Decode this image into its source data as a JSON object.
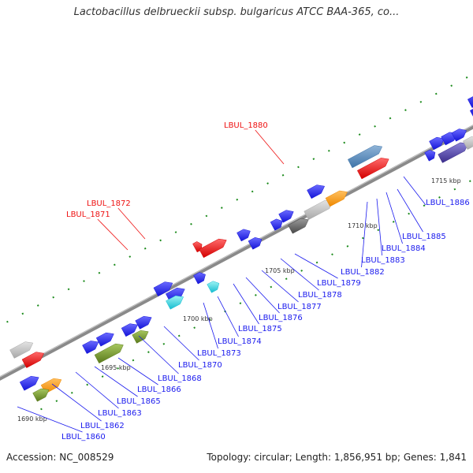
{
  "title": "Lactobacillus delbrueckii subsp. bulgaricus ATCC BAA-365, co...",
  "footer": {
    "accession": "Accession: NC_008529",
    "summary": "Topology: circular; Length: 1,856,951 bp; Genes: 1,841"
  },
  "colors": {
    "label_default": "#1a1aee",
    "label_highlight": "#ee1111",
    "backbone": "#8a8a8a",
    "tick": "#1a8a1a"
  },
  "scale_labels": [
    "1690 kbp",
    "1695 kbp",
    "1700 kbp",
    "1705 kbp",
    "1710 kbp",
    "1715 kbp"
  ],
  "gene_labels": [
    {
      "text": "LBUL_1860",
      "highlight": false
    },
    {
      "text": "LBUL_1862",
      "highlight": false
    },
    {
      "text": "LBUL_1863",
      "highlight": false
    },
    {
      "text": "LBUL_1865",
      "highlight": false
    },
    {
      "text": "LBUL_1866",
      "highlight": false
    },
    {
      "text": "LBUL_1868",
      "highlight": false
    },
    {
      "text": "LBUL_1870",
      "highlight": false
    },
    {
      "text": "LBUL_1871",
      "highlight": true
    },
    {
      "text": "LBUL_1872",
      "highlight": true
    },
    {
      "text": "LBUL_1873",
      "highlight": false
    },
    {
      "text": "LBUL_1874",
      "highlight": false
    },
    {
      "text": "LBUL_1875",
      "highlight": false
    },
    {
      "text": "LBUL_1876",
      "highlight": false
    },
    {
      "text": "LBUL_1877",
      "highlight": false
    },
    {
      "text": "LBUL_1878",
      "highlight": false
    },
    {
      "text": "LBUL_1879",
      "highlight": false
    },
    {
      "text": "LBUL_1880",
      "highlight": true
    },
    {
      "text": "LBUL_1882",
      "highlight": false
    },
    {
      "text": "LBUL_1883",
      "highlight": false
    },
    {
      "text": "LBUL_1884",
      "highlight": false
    },
    {
      "text": "LBUL_1885",
      "highlight": false
    },
    {
      "text": "LBUL_1886",
      "highlight": false
    }
  ]
}
